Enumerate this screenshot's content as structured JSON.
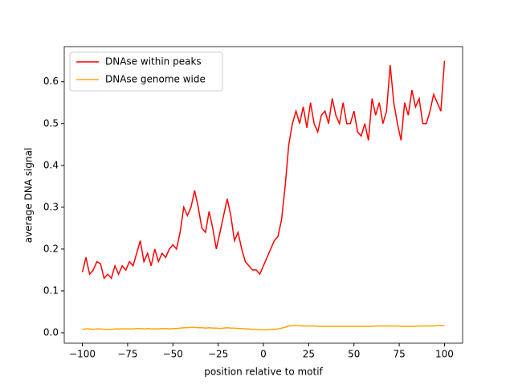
{
  "chart_data": {
    "type": "line",
    "xlabel": "position relative to motif",
    "ylabel": "average DNA signal",
    "x": [
      -100,
      -98,
      -96,
      -94,
      -92,
      -90,
      -88,
      -86,
      -84,
      -82,
      -80,
      -78,
      -76,
      -74,
      -72,
      -70,
      -68,
      -66,
      -64,
      -62,
      -60,
      -58,
      -56,
      -54,
      -52,
      -50,
      -48,
      -46,
      -44,
      -42,
      -40,
      -38,
      -36,
      -34,
      -32,
      -30,
      -28,
      -26,
      -24,
      -22,
      -20,
      -18,
      -16,
      -14,
      -12,
      -10,
      -8,
      -6,
      -4,
      -2,
      0,
      2,
      4,
      6,
      8,
      10,
      12,
      14,
      16,
      18,
      20,
      22,
      24,
      26,
      28,
      30,
      32,
      34,
      36,
      38,
      40,
      42,
      44,
      46,
      48,
      50,
      52,
      54,
      56,
      58,
      60,
      62,
      64,
      66,
      68,
      70,
      72,
      74,
      76,
      78,
      80,
      82,
      84,
      86,
      88,
      90,
      92,
      94,
      96,
      98,
      100
    ],
    "series": [
      {
        "name": "DNAse within peaks",
        "color": "#ff0000",
        "values": [
          0.145,
          0.18,
          0.14,
          0.15,
          0.17,
          0.165,
          0.13,
          0.14,
          0.13,
          0.16,
          0.14,
          0.16,
          0.15,
          0.17,
          0.16,
          0.19,
          0.22,
          0.17,
          0.19,
          0.16,
          0.2,
          0.17,
          0.19,
          0.18,
          0.2,
          0.21,
          0.2,
          0.24,
          0.3,
          0.28,
          0.3,
          0.34,
          0.3,
          0.25,
          0.24,
          0.29,
          0.25,
          0.2,
          0.24,
          0.28,
          0.32,
          0.28,
          0.22,
          0.24,
          0.2,
          0.17,
          0.16,
          0.15,
          0.15,
          0.14,
          0.16,
          0.18,
          0.2,
          0.22,
          0.23,
          0.27,
          0.35,
          0.45,
          0.5,
          0.53,
          0.5,
          0.54,
          0.49,
          0.55,
          0.5,
          0.48,
          0.52,
          0.53,
          0.5,
          0.56,
          0.52,
          0.5,
          0.55,
          0.5,
          0.5,
          0.53,
          0.48,
          0.47,
          0.5,
          0.46,
          0.56,
          0.52,
          0.55,
          0.5,
          0.53,
          0.64,
          0.55,
          0.5,
          0.46,
          0.55,
          0.52,
          0.58,
          0.54,
          0.56,
          0.5,
          0.5,
          0.53,
          0.57,
          0.55,
          0.53,
          0.65
        ]
      },
      {
        "name": "DNAse genome wide",
        "color": "#ffa500",
        "values": [
          0.008,
          0.009,
          0.009,
          0.008,
          0.009,
          0.009,
          0.008,
          0.008,
          0.008,
          0.009,
          0.009,
          0.009,
          0.009,
          0.009,
          0.009,
          0.01,
          0.01,
          0.009,
          0.01,
          0.009,
          0.009,
          0.009,
          0.01,
          0.01,
          0.009,
          0.01,
          0.01,
          0.011,
          0.012,
          0.012,
          0.013,
          0.013,
          0.012,
          0.012,
          0.011,
          0.012,
          0.011,
          0.011,
          0.01,
          0.011,
          0.012,
          0.011,
          0.011,
          0.01,
          0.01,
          0.009,
          0.009,
          0.008,
          0.008,
          0.007,
          0.007,
          0.007,
          0.008,
          0.008,
          0.009,
          0.011,
          0.013,
          0.016,
          0.017,
          0.017,
          0.017,
          0.016,
          0.016,
          0.016,
          0.016,
          0.015,
          0.015,
          0.015,
          0.015,
          0.015,
          0.015,
          0.015,
          0.015,
          0.015,
          0.015,
          0.015,
          0.015,
          0.015,
          0.015,
          0.015,
          0.015,
          0.016,
          0.016,
          0.016,
          0.016,
          0.016,
          0.016,
          0.016,
          0.015,
          0.015,
          0.015,
          0.015,
          0.015,
          0.016,
          0.016,
          0.016,
          0.016,
          0.016,
          0.017,
          0.017,
          0.017
        ]
      }
    ],
    "xlim": [
      -110,
      110
    ],
    "xticks": [
      {
        "value": -100,
        "label": "−100"
      },
      {
        "value": -75,
        "label": "−75"
      },
      {
        "value": -50,
        "label": "−50"
      },
      {
        "value": -25,
        "label": "−25"
      },
      0,
      25,
      50,
      75,
      100
    ],
    "ylim": [
      -0.025,
      0.684
    ],
    "yticks": [
      {
        "value": 0,
        "label": "0.0"
      },
      0.1,
      0.2,
      0.3,
      0.4,
      0.5,
      0.6
    ],
    "grid": false,
    "legend": "upper left"
  }
}
